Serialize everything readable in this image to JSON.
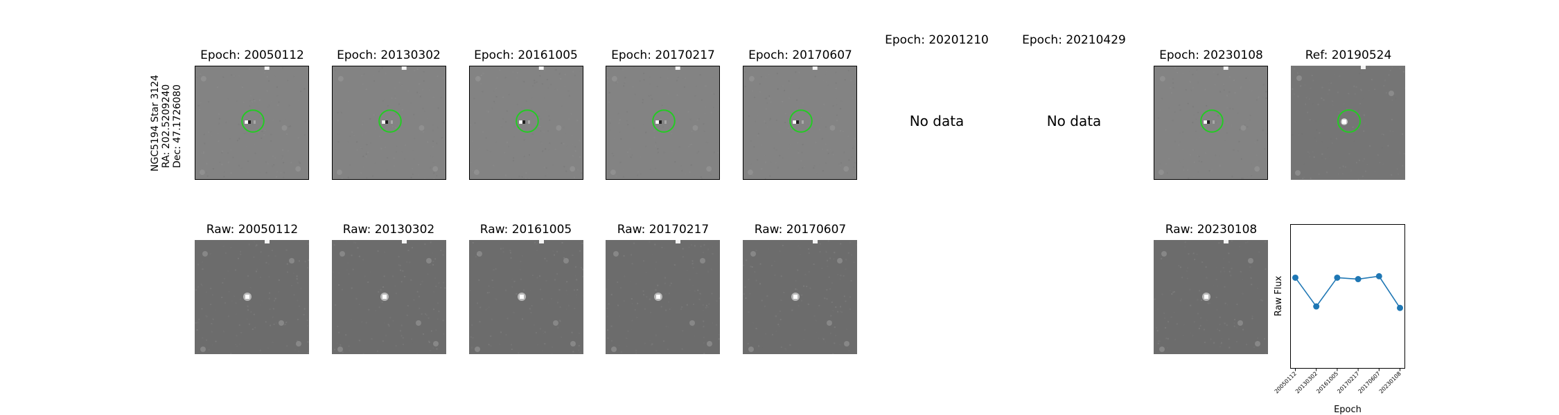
{
  "star": {
    "name": "NGC5194 Star 3124",
    "ra": "RA: 202.5209240",
    "dec": "Dec: 47.1726080"
  },
  "diff_panels": [
    {
      "title": "Epoch: 20050112",
      "has_data": true
    },
    {
      "title": "Epoch: 20130302",
      "has_data": true
    },
    {
      "title": "Epoch: 20161005",
      "has_data": true
    },
    {
      "title": "Epoch: 20170217",
      "has_data": true
    },
    {
      "title": "Epoch: 20170607",
      "has_data": true
    },
    {
      "title": "Epoch: 20201210",
      "has_data": false,
      "message": "No data"
    },
    {
      "title": "Epoch: 20210429",
      "has_data": false,
      "message": "No data"
    },
    {
      "title": "Epoch: 20230108",
      "has_data": true
    },
    {
      "title": "Ref: 20190524",
      "has_data": true
    }
  ],
  "raw_panels": [
    {
      "title": "Raw: 20050112"
    },
    {
      "title": "Raw: 20130302"
    },
    {
      "title": "Raw: 20161005"
    },
    {
      "title": "Raw: 20170217"
    },
    {
      "title": "Raw: 20170607"
    },
    {
      "title": "Raw: 20230108"
    }
  ],
  "colors": {
    "circle": "#22cc22",
    "series": "#1f77b4",
    "diff_bg": "#7a7a7a",
    "raw_bg": "#6e6e6e"
  },
  "chart_data": {
    "type": "line",
    "xlabel": "Epoch",
    "ylabel": "Raw Flux",
    "categories": [
      "20050112",
      "20130302",
      "20161005",
      "20170217",
      "20170607",
      "20230108"
    ],
    "values": [
      0.63,
      0.43,
      0.63,
      0.62,
      0.64,
      0.42
    ],
    "ylim": [
      0,
      1
    ],
    "show_y_ticks": false,
    "grid": false
  }
}
